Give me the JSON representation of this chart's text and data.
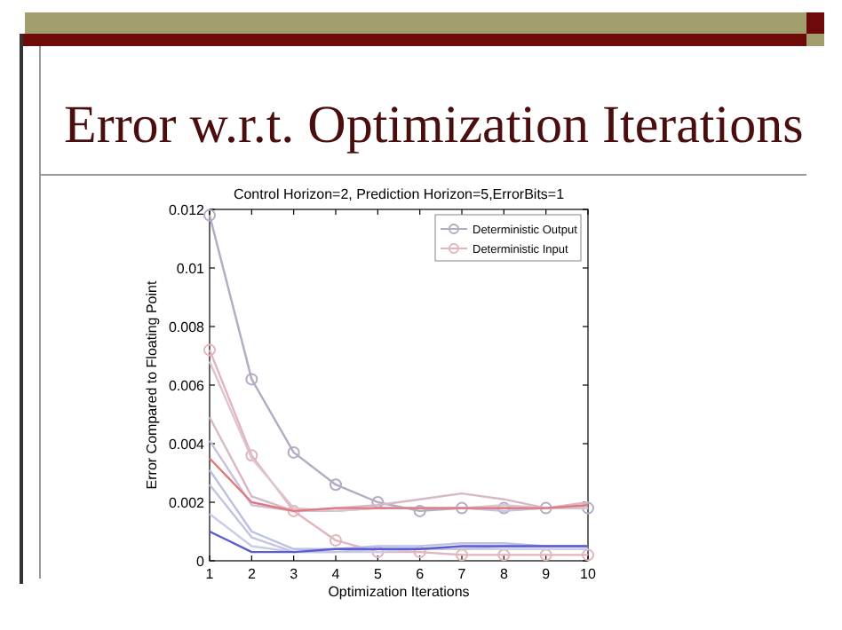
{
  "chart_data": {
    "type": "line",
    "title": "Error w.r.t. Optimization Iterations",
    "subtitle": "Control Horizon=2, Prediction Horizon=5,ErrorBits=1",
    "xlabel": "Optimization Iterations",
    "ylabel": "Error Compared to Floating Point",
    "x": [
      1,
      2,
      3,
      4,
      5,
      6,
      7,
      8,
      9,
      10
    ],
    "xlim": [
      1,
      10
    ],
    "xticks": [
      1,
      2,
      3,
      4,
      5,
      6,
      7,
      8,
      9,
      10
    ],
    "ylim": [
      0,
      0.012
    ],
    "yticks": [
      0,
      0.002,
      0.004,
      0.006,
      0.008,
      0.01,
      0.012
    ],
    "grid": false,
    "legend": "top right",
    "series": [
      {
        "name": "Deterministic Output",
        "color": "#b4aac4",
        "marker": "circle",
        "values": [
          0.0118,
          0.0062,
          0.0037,
          0.0026,
          0.002,
          0.0017,
          0.0018,
          0.0018,
          0.0018,
          0.0018
        ]
      },
      {
        "name": "Deterministic Input",
        "color": "#e4b4bc",
        "marker": "circle",
        "values": [
          0.0072,
          0.0036,
          0.0017,
          0.0007,
          0.0003,
          0.0003,
          0.0002,
          0.0002,
          0.0002,
          0.0002
        ]
      },
      {
        "color": "#d8b8c8",
        "marker": "none",
        "values": [
          0.0049,
          0.0022,
          0.0017,
          0.0018,
          0.0019,
          0.0021,
          0.0023,
          0.0021,
          0.0018,
          0.002
        ]
      },
      {
        "color": "#c8c0dc",
        "marker": "none",
        "values": [
          0.0041,
          0.0019,
          0.0017,
          0.0017,
          0.0018,
          0.0018,
          0.0018,
          0.0017,
          0.0018,
          0.0018
        ]
      },
      {
        "color": "#bcc0e4",
        "marker": "none",
        "values": [
          0.0031,
          0.001,
          0.0004,
          0.0004,
          0.0005,
          0.0005,
          0.0006,
          0.0006,
          0.0005,
          0.0005
        ]
      },
      {
        "color": "#c8cce8",
        "marker": "none",
        "values": [
          0.0016,
          0.0005,
          0.0003,
          0.0003,
          0.0003,
          0.0004,
          0.0004,
          0.0004,
          0.0004,
          0.0004
        ]
      },
      {
        "color": "#dcc4d4",
        "marker": "none",
        "values": [
          0.0068,
          0.0035,
          0.0018,
          0.0017,
          0.0018,
          0.0018,
          0.0018,
          0.0019,
          0.0018,
          0.0018
        ]
      },
      {
        "color": "#c4c4e0",
        "marker": "none",
        "values": [
          0.0026,
          0.0008,
          0.0003,
          0.0003,
          0.0004,
          0.0004,
          0.0004,
          0.0005,
          0.0005,
          0.0005
        ]
      },
      {
        "color": "#e07a7a",
        "marker": "none",
        "values": [
          0.0035,
          0.002,
          0.0017,
          0.0018,
          0.0018,
          0.0018,
          0.0018,
          0.0018,
          0.0018,
          0.0019
        ]
      },
      {
        "color": "#5a5ad2",
        "marker": "none",
        "values": [
          0.001,
          0.0003,
          0.0003,
          0.0004,
          0.0004,
          0.0004,
          0.0005,
          0.0005,
          0.0005,
          0.0005
        ]
      }
    ]
  }
}
